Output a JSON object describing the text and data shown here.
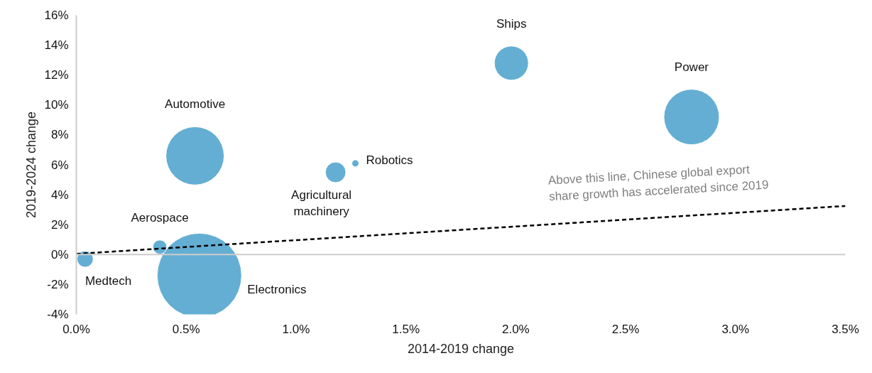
{
  "chart_data": {
    "type": "bubble",
    "xlabel": "2014-2019 change",
    "ylabel": "2019-2024 change",
    "xlim": [
      0,
      3.5
    ],
    "xticks": [
      {
        "value": 0,
        "label": "0.0%"
      },
      {
        "value": 0.5,
        "label": "0.5%"
      },
      {
        "value": 1,
        "label": "1.0%"
      },
      {
        "value": 1.5,
        "label": "1.5%"
      },
      {
        "value": 2,
        "label": "2.0%"
      },
      {
        "value": 2.5,
        "label": "2.5%"
      },
      {
        "value": 3,
        "label": "3.0%"
      },
      {
        "value": 3.5,
        "label": "3.5%"
      }
    ],
    "ylim": [
      -4,
      16
    ],
    "yticks": [
      {
        "value": -4,
        "label": "-4%"
      },
      {
        "value": -2,
        "label": "-2%"
      },
      {
        "value": 0,
        "label": "0%"
      },
      {
        "value": 2,
        "label": "2%"
      },
      {
        "value": 4,
        "label": "4%"
      },
      {
        "value": 6,
        "label": "6%"
      },
      {
        "value": 8,
        "label": "8%"
      },
      {
        "value": 10,
        "label": "10%"
      },
      {
        "value": 12,
        "label": "12%"
      },
      {
        "value": 14,
        "label": "14%"
      },
      {
        "value": 16,
        "label": "16%"
      }
    ],
    "grid": false,
    "series": [
      {
        "color": "#64aed3",
        "x": [
          0.04,
          0.38,
          0.56,
          0.54,
          1.18,
          1.27,
          1.98,
          2.8
        ],
        "values": [
          -0.3,
          0.5,
          -1.4,
          6.6,
          5.5,
          6.1,
          12.8,
          9.2
        ],
        "sizes": [
          0.037,
          0.028,
          1,
          0.475,
          0.059,
          0.007,
          0.163,
          0.43
        ]
      },
      {
        "type": "line",
        "color": "#000000",
        "line_style": "dashed",
        "x": [
          0,
          3.5
        ],
        "values": [
          0.05,
          3.25
        ]
      }
    ],
    "ref_lines": [
      {
        "axis": "y",
        "value": 0,
        "color": "#cccccc"
      }
    ],
    "annotations": [
      "Medtech",
      "Aerospace",
      "Electronics",
      "Automotive",
      "Agricultural\nmachinery",
      "Robotics",
      "Ships",
      "Power",
      "Above this line, Chinese global export\nshare growth has accelerated since 2019"
    ]
  }
}
